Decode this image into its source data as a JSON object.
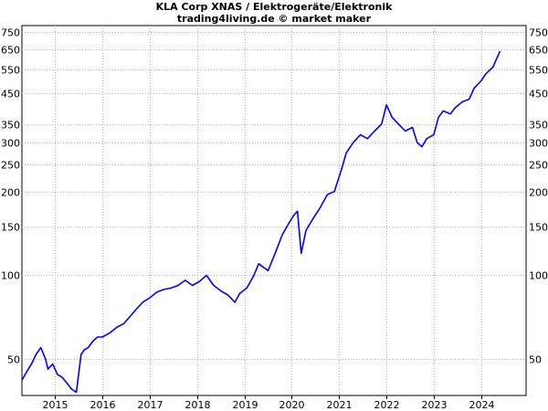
{
  "chart_data": {
    "type": "line",
    "title": "KLA Corp XNAS / Elektrogeräte/Elektronik",
    "subtitle": "trading4living.de © market maker",
    "y_scale": "log",
    "ylim": [
      37,
      790
    ],
    "xlim": [
      2014.3,
      2024.95
    ],
    "grid": true,
    "line_color": "#0000ff",
    "y_ticks": [
      50,
      100,
      150,
      200,
      250,
      300,
      350,
      450,
      550,
      650,
      750
    ],
    "x_ticks": [
      {
        "value": 2015,
        "label": "2015"
      },
      {
        "value": 2016,
        "label": "2016"
      },
      {
        "value": 2017,
        "label": "2017"
      },
      {
        "value": 2018,
        "label": "2018"
      },
      {
        "value": 2019,
        "label": "2019"
      },
      {
        "value": 2020,
        "label": "2020"
      },
      {
        "value": 2021,
        "label": "2021"
      },
      {
        "value": 2022,
        "label": "2022"
      },
      {
        "value": 2023,
        "label": "2023"
      },
      {
        "value": 2024,
        "label": "2024"
      }
    ],
    "series": [
      {
        "x": [
          2014.3,
          2014.4,
          2014.5,
          2014.6,
          2014.7,
          2014.8,
          2014.85,
          2014.95,
          2015.05,
          2015.15,
          2015.25,
          2015.35,
          2015.45,
          2015.55,
          2015.62,
          2015.7,
          2015.8,
          2015.9,
          2016.0,
          2016.15,
          2016.3,
          2016.45,
          2016.55,
          2016.7,
          2016.85,
          2017.0,
          2017.15,
          2017.3,
          2017.45,
          2017.6,
          2017.75,
          2017.9,
          2018.05,
          2018.2,
          2018.35,
          2018.5,
          2018.65,
          2018.8,
          2018.9,
          2019.05,
          2019.2,
          2019.3,
          2019.5,
          2019.65,
          2019.8,
          2019.95,
          2020.05,
          2020.12,
          2020.2,
          2020.3,
          2020.45,
          2020.6,
          2020.75,
          2020.9,
          2021.05,
          2021.15,
          2021.3,
          2021.45,
          2021.6,
          2021.75,
          2021.9,
          2022.0,
          2022.12,
          2022.25,
          2022.4,
          2022.55,
          2022.65,
          2022.75,
          2022.85,
          2023.0,
          2023.1,
          2023.2,
          2023.35,
          2023.45,
          2023.6,
          2023.75,
          2023.85,
          2024.0,
          2024.1,
          2024.25,
          2024.4
        ],
        "y": [
          42,
          45,
          48,
          52,
          55,
          50,
          46,
          48,
          44,
          43,
          41,
          39,
          38,
          52,
          54,
          55,
          58,
          60,
          60,
          62,
          65,
          67,
          70,
          75,
          80,
          83,
          87,
          89,
          90,
          92,
          96,
          92,
          95,
          100,
          92,
          88,
          85,
          80,
          86,
          90,
          100,
          110,
          104,
          120,
          140,
          155,
          165,
          170,
          120,
          145,
          160,
          175,
          195,
          200,
          240,
          275,
          300,
          320,
          310,
          330,
          350,
          410,
          370,
          350,
          330,
          340,
          300,
          290,
          310,
          320,
          370,
          390,
          380,
          400,
          420,
          430,
          470,
          500,
          530,
          560,
          640
        ]
      }
    ]
  }
}
